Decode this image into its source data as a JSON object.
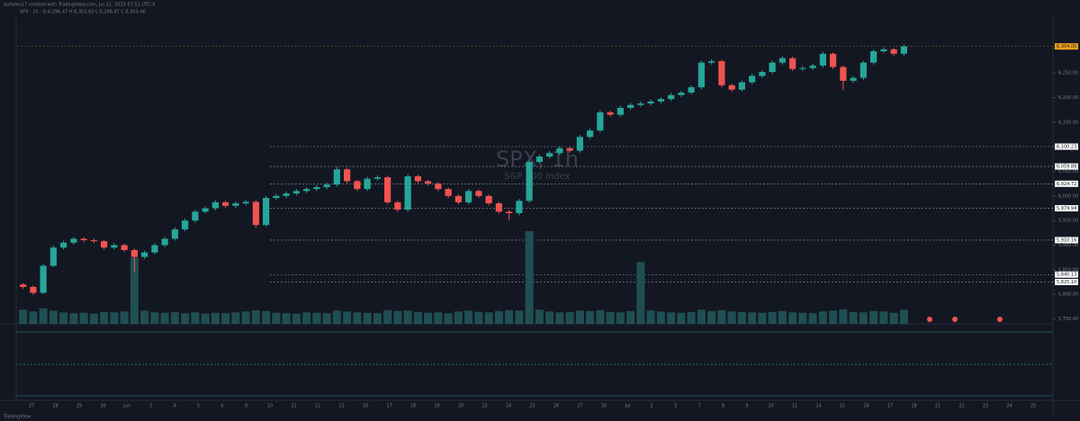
{
  "header": {
    "credit": "dollytev17 created with TradingView.com, Jul 21, 2025 07:51 UTC-4",
    "legend": "SPX · 1h · O 6,296.47 H 6,303.63 L 6,296.47 C 6,303.46"
  },
  "chart_data": {
    "type": "candlestick",
    "title": "SPX, 1h",
    "subtitle": "S&P 500 Index",
    "brand": "TradingView",
    "up_color": "#26a69a",
    "down_color": "#ef5350",
    "volume_color": "#1f4f52",
    "ylim": [
      5740,
      6316
    ],
    "yticks": [
      {
        "value": 5750,
        "label": "5,750.00"
      },
      {
        "value": 5800,
        "label": "5,800.00"
      },
      {
        "value": 5850,
        "label": "5,850.00"
      },
      {
        "value": 5900,
        "label": "5,900.00"
      },
      {
        "value": 5950,
        "label": "5,950.00"
      },
      {
        "value": 6000,
        "label": "6,000.00"
      },
      {
        "value": 6050,
        "label": "6,050.00"
      },
      {
        "value": 6100,
        "label": "6,100.00"
      },
      {
        "value": 6150,
        "label": "6,150.00"
      },
      {
        "value": 6200,
        "label": "6,200.00"
      },
      {
        "value": 6250,
        "label": "6,250.00"
      },
      {
        "value": 6300,
        "label": "6,300.00"
      }
    ],
    "levels": [
      {
        "value": 6100.23,
        "label": "6,100.23"
      },
      {
        "value": 6059.88,
        "label": "6,059.88"
      },
      {
        "value": 6024.72,
        "label": "6,024.72"
      },
      {
        "value": 5974.94,
        "label": "5,974.94"
      },
      {
        "value": 5910.16,
        "label": "5,910.16"
      },
      {
        "value": 5840.13,
        "label": "5,840.13"
      },
      {
        "value": 5825.1,
        "label": "5,825.10"
      }
    ],
    "last_price": {
      "value": 6304,
      "label": "6,304.00"
    },
    "x_labels": [
      "27",
      "28",
      "29",
      "30",
      "Jun",
      "3",
      "4",
      "5",
      "6",
      "9",
      "10",
      "11",
      "12",
      "13",
      "16",
      "17",
      "18",
      "19",
      "20",
      "23",
      "24",
      "25",
      "26",
      "27",
      "30",
      "Jul",
      "2",
      "3",
      "7",
      "8",
      "9",
      "10",
      "11",
      "14",
      "15",
      "16",
      "17",
      "18",
      "21",
      "22",
      "23",
      "24",
      "25"
    ],
    "candles": [
      [
        5820,
        5823,
        5811,
        5815
      ],
      [
        5815,
        5818,
        5799,
        5803
      ],
      [
        5803,
        5862,
        5800,
        5858
      ],
      [
        5858,
        5899,
        5855,
        5895
      ],
      [
        5895,
        5909,
        5891,
        5905
      ],
      [
        5905,
        5917,
        5901,
        5913
      ],
      [
        5913,
        5916,
        5906,
        5910
      ],
      [
        5910,
        5914,
        5904,
        5908
      ],
      [
        5908,
        5911,
        5891,
        5895
      ],
      [
        5895,
        5904,
        5891,
        5900
      ],
      [
        5900,
        5903,
        5886,
        5890
      ],
      [
        5890,
        5893,
        5845,
        5876
      ],
      [
        5876,
        5889,
        5872,
        5885
      ],
      [
        5885,
        5904,
        5881,
        5900
      ],
      [
        5900,
        5917,
        5896,
        5913
      ],
      [
        5913,
        5936,
        5909,
        5932
      ],
      [
        5932,
        5954,
        5928,
        5950
      ],
      [
        5950,
        5972,
        5946,
        5968
      ],
      [
        5968,
        5979,
        5964,
        5975
      ],
      [
        5975,
        5991,
        5971,
        5987
      ],
      [
        5987,
        5991,
        5976,
        5980
      ],
      [
        5980,
        5989,
        5976,
        5985
      ],
      [
        5985,
        5992,
        5981,
        5988
      ],
      [
        5988,
        5991,
        5935,
        5941
      ],
      [
        5941,
        6000,
        5937,
        5996
      ],
      [
        5996,
        6004,
        5992,
        6000
      ],
      [
        6000,
        6009,
        5996,
        6005
      ],
      [
        6005,
        6014,
        6001,
        6010
      ],
      [
        6010,
        6018,
        6006,
        6014
      ],
      [
        6014,
        6022,
        6010,
        6018
      ],
      [
        6018,
        6027,
        6014,
        6023
      ],
      [
        6023,
        6059,
        6019,
        6054
      ],
      [
        6054,
        6057,
        6026,
        6030
      ],
      [
        6030,
        6033,
        6010,
        6014
      ],
      [
        6014,
        6039,
        6010,
        6035
      ],
      [
        6035,
        6042,
        6031,
        6038
      ],
      [
        6038,
        6041,
        5983,
        5987
      ],
      [
        5987,
        5990,
        5968,
        5972
      ],
      [
        5972,
        6044,
        5968,
        6040
      ],
      [
        6040,
        6043,
        6026,
        6030
      ],
      [
        6030,
        6033,
        6021,
        6025
      ],
      [
        6025,
        6028,
        6010,
        6014
      ],
      [
        6014,
        6017,
        5996,
        6000
      ],
      [
        6000,
        6003,
        5983,
        5987
      ],
      [
        5987,
        6014,
        5983,
        6010
      ],
      [
        6010,
        6013,
        5996,
        6000
      ],
      [
        6000,
        6003,
        5981,
        5985
      ],
      [
        5985,
        5988,
        5964,
        5968
      ],
      [
        5968,
        5971,
        5950,
        5965
      ],
      [
        5965,
        5994,
        5961,
        5990
      ],
      [
        5990,
        6073,
        5986,
        6069
      ],
      [
        6069,
        6084,
        6065,
        6080
      ],
      [
        6080,
        6091,
        6076,
        6087
      ],
      [
        6087,
        6101,
        6083,
        6097
      ],
      [
        6097,
        6100,
        6088,
        6092
      ],
      [
        6092,
        6124,
        6088,
        6120
      ],
      [
        6120,
        6137,
        6116,
        6133
      ],
      [
        6133,
        6174,
        6129,
        6170
      ],
      [
        6170,
        6173,
        6161,
        6165
      ],
      [
        6165,
        6183,
        6161,
        6179
      ],
      [
        6179,
        6189,
        6175,
        6185
      ],
      [
        6185,
        6192,
        6181,
        6188
      ],
      [
        6188,
        6196,
        6184,
        6192
      ],
      [
        6192,
        6201,
        6188,
        6197
      ],
      [
        6197,
        6209,
        6193,
        6205
      ],
      [
        6205,
        6214,
        6201,
        6210
      ],
      [
        6210,
        6225,
        6206,
        6221
      ],
      [
        6221,
        6275,
        6217,
        6271
      ],
      [
        6271,
        6278,
        6267,
        6274
      ],
      [
        6274,
        6277,
        6221,
        6225
      ],
      [
        6225,
        6228,
        6212,
        6216
      ],
      [
        6216,
        6235,
        6212,
        6231
      ],
      [
        6231,
        6248,
        6227,
        6244
      ],
      [
        6244,
        6256,
        6240,
        6252
      ],
      [
        6252,
        6275,
        6248,
        6271
      ],
      [
        6271,
        6284,
        6267,
        6280
      ],
      [
        6280,
        6283,
        6254,
        6258
      ],
      [
        6258,
        6264,
        6254,
        6260
      ],
      [
        6260,
        6269,
        6256,
        6265
      ],
      [
        6265,
        6293,
        6261,
        6289
      ],
      [
        6289,
        6292,
        6258,
        6262
      ],
      [
        6262,
        6265,
        6215,
        6234
      ],
      [
        6234,
        6244,
        6230,
        6240
      ],
      [
        6240,
        6275,
        6236,
        6271
      ],
      [
        6271,
        6298,
        6267,
        6294
      ],
      [
        6294,
        6302,
        6290,
        6298
      ],
      [
        6298,
        6301,
        6285,
        6289
      ],
      [
        6289,
        6308,
        6285,
        6304
      ]
    ],
    "volumes": [
      320,
      280,
      350,
      300,
      260,
      240,
      250,
      230,
      270,
      260,
      280,
      1500,
      300,
      260,
      250,
      270,
      240,
      260,
      230,
      250,
      240,
      260,
      280,
      310,
      290,
      250,
      240,
      230,
      260,
      250,
      240,
      300,
      280,
      260,
      250,
      240,
      310,
      290,
      300,
      270,
      250,
      260,
      240,
      280,
      300,
      270,
      260,
      290,
      310,
      300,
      2100,
      320,
      280,
      260,
      270,
      300,
      290,
      310,
      270,
      260,
      290,
      1400,
      300,
      280,
      260,
      250,
      270,
      320,
      290,
      310,
      280,
      270,
      260,
      250,
      270,
      290,
      260,
      250,
      240,
      280,
      300,
      330,
      270,
      260,
      290,
      280,
      250,
      320
    ],
    "vlim": [
      0,
      2200
    ]
  }
}
